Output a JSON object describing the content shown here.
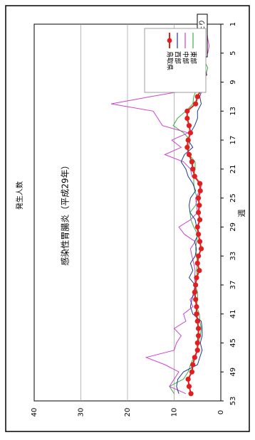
{
  "chart_data": {
    "type": "line",
    "title": "感染性胃腸炎（平成29年）",
    "badge": "定点当たり",
    "xlabel": "週",
    "ylabel": "発生人数",
    "x_ticks": [
      1,
      5,
      9,
      13,
      17,
      21,
      25,
      29,
      33,
      37,
      41,
      45,
      49,
      53
    ],
    "y_ticks": [
      0,
      10,
      20,
      30,
      40
    ],
    "xlim": [
      1,
      53
    ],
    "ylim": [
      0,
      40
    ],
    "grid": "horizontal",
    "legend_position": "top-right",
    "x": [
      1,
      2,
      3,
      4,
      5,
      6,
      7,
      8,
      9,
      10,
      11,
      12,
      13,
      14,
      15,
      16,
      17,
      18,
      19,
      20,
      21,
      22,
      23,
      24,
      25,
      26,
      27,
      28,
      29,
      30,
      31,
      32,
      33,
      34,
      35,
      36,
      37,
      38,
      39,
      40,
      41,
      42,
      43,
      44,
      45,
      46,
      47,
      48,
      49,
      50,
      51,
      52
    ],
    "series": [
      {
        "name": "東部",
        "color": "#3cb043",
        "marker": false,
        "values": [
          3.5,
          3.8,
          3.2,
          4.0,
          4.4,
          3.6,
          2.8,
          3.2,
          4.5,
          5.2,
          5.8,
          6.0,
          7.5,
          9.3,
          10.2,
          8.0,
          6.5,
          7.0,
          6.8,
          5.5,
          5.5,
          5.8,
          5.8,
          5.6,
          5.0,
          5.4,
          6.6,
          6.4,
          5.8,
          5.0,
          5.2,
          5.4,
          5.2,
          5.0,
          5.2,
          5.0,
          5.5,
          5.0,
          5.0,
          5.2,
          4.6,
          4.5,
          4.2,
          4.4,
          4.8,
          5.0,
          5.8,
          6.5,
          7.0,
          8.0,
          11.0,
          10.0
        ]
      },
      {
        "name": "中部",
        "color": "#cc44cc",
        "marker": false,
        "values": [
          3.2,
          3.0,
          2.8,
          2.5,
          2.8,
          5.6,
          3.2,
          4.0,
          3.8,
          6.0,
          15.0,
          23.5,
          14.5,
          13.5,
          12.5,
          7.0,
          10.5,
          8.5,
          12.0,
          8.0,
          6.5,
          6.2,
          4.0,
          4.5,
          5.4,
          5.2,
          5.0,
          6.5,
          9.0,
          7.8,
          5.5,
          6.5,
          6.2,
          5.8,
          5.5,
          5.6,
          5.5,
          5.2,
          6.6,
          6.0,
          8.0,
          7.5,
          10.0,
          8.5,
          9.5,
          10.0,
          16.0,
          12.0,
          9.0,
          10.0,
          11.0,
          7.5
        ]
      },
      {
        "name": "西部",
        "color": "#1f3a93",
        "marker": false,
        "values": [
          4.5,
          3.8,
          4.6,
          4.4,
          4.8,
          3.8,
          3.5,
          3.0,
          4.4,
          4.0,
          4.5,
          4.2,
          5.0,
          5.0,
          5.6,
          6.5,
          7.0,
          6.0,
          7.8,
          8.5,
          7.5,
          7.0,
          6.0,
          5.4,
          6.5,
          6.8,
          6.6,
          5.5,
          5.2,
          4.8,
          5.6,
          5.2,
          5.5,
          6.5,
          6.0,
          6.8,
          5.5,
          5.8,
          6.2,
          6.5,
          6.0,
          4.2,
          4.0,
          4.0,
          4.4,
          4.0,
          4.5,
          5.0,
          8.0,
          9.2,
          9.5,
          9.0
        ]
      },
      {
        "name": "鳥取県",
        "color": "#e02020",
        "marker": true,
        "values": [
          4.0,
          3.6,
          3.8,
          4.0,
          4.5,
          4.6,
          4.0,
          3.6,
          3.8,
          4.2,
          5.0,
          5.4,
          7.2,
          7.2,
          6.8,
          6.5,
          7.0,
          7.2,
          6.8,
          6.2,
          6.0,
          5.6,
          4.5,
          4.4,
          4.8,
          4.6,
          4.8,
          4.5,
          5.0,
          4.8,
          4.5,
          4.2,
          4.8,
          5.0,
          4.6,
          5.2,
          5.4,
          5.6,
          5.4,
          5.2,
          5.2,
          5.0,
          4.8,
          4.8,
          5.0,
          5.0,
          5.6,
          6.0,
          6.2,
          7.0,
          6.8,
          6.4
        ]
      }
    ]
  }
}
